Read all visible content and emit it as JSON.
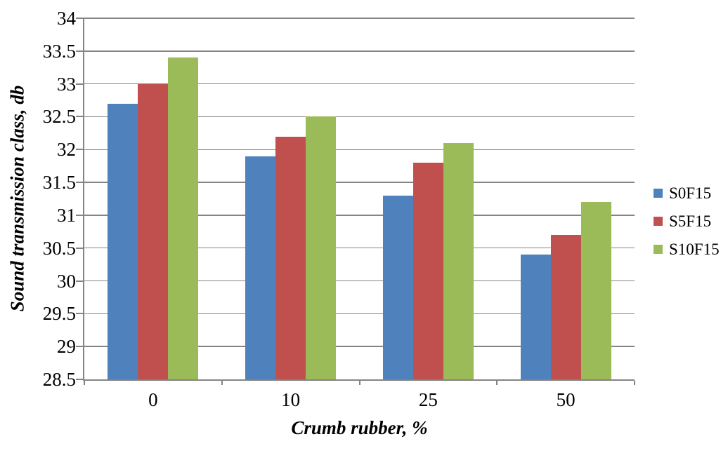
{
  "chart_data": {
    "type": "bar",
    "title": "",
    "categories": [
      "0",
      "10",
      "25",
      "50"
    ],
    "series": [
      {
        "name": "S0F15",
        "color": "#4F81BD",
        "values": [
          32.7,
          31.9,
          31.3,
          30.4
        ]
      },
      {
        "name": "S5F15",
        "color": "#C0504D",
        "values": [
          33.0,
          32.2,
          31.8,
          30.7
        ]
      },
      {
        "name": "S10F15",
        "color": "#9BBB59",
        "values": [
          33.4,
          32.5,
          32.1,
          31.2
        ]
      }
    ],
    "xlabel": "Crumb rubber, %",
    "ylabel": "Sound transmission class, db",
    "ylim": [
      28.5,
      34
    ],
    "ytick_step": 0.5,
    "yticks": [
      "34",
      "33.5",
      "33",
      "32.5",
      "32",
      "31.5",
      "31",
      "30.5",
      "30",
      "29.5",
      "29",
      "28.5"
    ],
    "grid": true,
    "legend_position": "right",
    "axis_color": "#848484",
    "grid_color": "#848484",
    "background_color": "#ffffff"
  }
}
